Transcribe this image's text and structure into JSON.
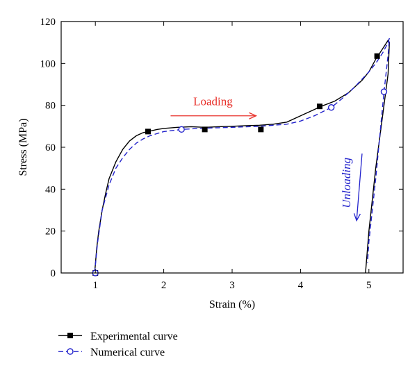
{
  "chart_data": {
    "type": "line",
    "xlabel": "Strain (%)",
    "ylabel": "Stress (MPa)",
    "xlim": [
      0.5,
      5.5
    ],
    "ylim": [
      0,
      120
    ],
    "xticks": [
      1,
      2,
      3,
      4,
      5
    ],
    "yticks": [
      0,
      20,
      40,
      60,
      80,
      100,
      120
    ],
    "grid": false,
    "legend_position": "bottom-left outside",
    "series": [
      {
        "name": "Experimental curve",
        "color": "#000000",
        "line_style": "solid",
        "marker": "filled-square",
        "x": [
          0.99,
          1.02,
          1.05,
          1.1,
          1.15,
          1.2,
          1.3,
          1.4,
          1.5,
          1.6,
          1.7,
          1.77,
          1.9,
          2.0,
          2.2,
          2.4,
          2.6,
          2.8,
          3.0,
          3.2,
          3.4,
          3.6,
          3.8,
          4.0,
          4.2,
          4.3,
          4.5,
          4.7,
          4.9,
          5.0,
          5.1,
          5.2,
          5.28,
          5.3,
          5.28,
          5.2,
          5.1,
          5.0,
          4.95
        ],
        "y": [
          0,
          12,
          20,
          30,
          38,
          45,
          53,
          59,
          63,
          65.5,
          67,
          67.5,
          68.5,
          69,
          69.5,
          69.8,
          69.5,
          69.8,
          70,
          70.3,
          70.5,
          71,
          72,
          75,
          78,
          79.5,
          82,
          86,
          92,
          96,
          102,
          107,
          111,
          110,
          95,
          75,
          50,
          20,
          0
        ],
        "marker_x": [
          1.0,
          1.77,
          2.6,
          3.42,
          4.28,
          5.12
        ],
        "marker_y": [
          0,
          67.5,
          68.5,
          68.5,
          79.5,
          103.5
        ]
      },
      {
        "name": "Numerical curve",
        "color": "#2222cc",
        "line_style": "dashed",
        "marker": "open-circle",
        "x": [
          0.99,
          1.03,
          1.1,
          1.2,
          1.3,
          1.4,
          1.5,
          1.6,
          1.7,
          1.8,
          2.0,
          2.26,
          2.5,
          2.8,
          3.0,
          3.4,
          3.8,
          4.0,
          4.2,
          4.45,
          4.6,
          4.8,
          5.0,
          5.1,
          5.2,
          5.28,
          5.3,
          5.28,
          5.22,
          5.1,
          5.0,
          4.98
        ],
        "y": [
          0,
          14,
          30,
          42,
          50,
          55,
          59,
          62,
          64,
          65.5,
          67.5,
          68.5,
          69,
          69.3,
          69.5,
          70,
          71,
          72.5,
          75,
          79,
          83,
          89,
          96,
          100,
          105,
          110,
          112,
          104,
          86,
          45,
          15,
          5
        ],
        "marker_x": [
          1.0,
          2.26,
          4.45,
          5.22
        ],
        "marker_y": [
          0,
          68.5,
          79,
          86.5
        ]
      }
    ],
    "annotations": [
      {
        "text": "Loading",
        "color": "#e8302a",
        "arrow_from": [
          2.1,
          75
        ],
        "arrow_to": [
          3.35,
          75
        ],
        "text_at": [
          2.72,
          80
        ]
      },
      {
        "text": "Unloading",
        "color": "#2222cc",
        "arrow_from": [
          4.9,
          57
        ],
        "arrow_to": [
          4.82,
          25
        ],
        "text_at": [
          4.73,
          43
        ],
        "rotation": -90
      }
    ]
  }
}
